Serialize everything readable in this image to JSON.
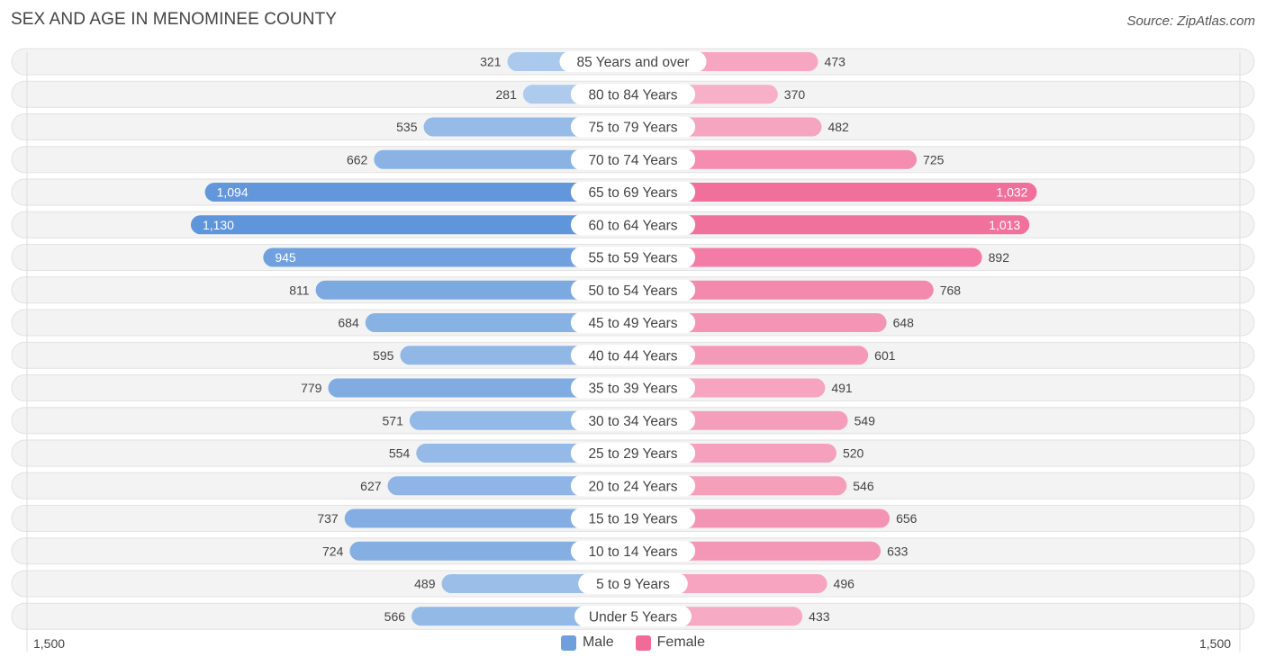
{
  "chart_data": {
    "type": "bar",
    "orientation": "horizontal-butterfly",
    "title": "SEX AND AGE IN MENOMINEE COUNTY",
    "source": "Source: ZipAtlas.com",
    "categories": [
      "85 Years and over",
      "80 to 84 Years",
      "75 to 79 Years",
      "70 to 74 Years",
      "65 to 69 Years",
      "60 to 64 Years",
      "55 to 59 Years",
      "50 to 54 Years",
      "45 to 49 Years",
      "40 to 44 Years",
      "35 to 39 Years",
      "30 to 34 Years",
      "25 to 29 Years",
      "20 to 24 Years",
      "15 to 19 Years",
      "10 to 14 Years",
      "5 to 9 Years",
      "Under 5 Years"
    ],
    "series": [
      {
        "name": "Male",
        "color": "#6fa0dc",
        "values": [
          321,
          281,
          535,
          662,
          1094,
          1130,
          945,
          811,
          684,
          595,
          779,
          571,
          554,
          627,
          737,
          724,
          489,
          566
        ],
        "labels": [
          "321",
          "281",
          "535",
          "662",
          "1,094",
          "1,130",
          "945",
          "811",
          "684",
          "595",
          "779",
          "571",
          "554",
          "627",
          "737",
          "724",
          "489",
          "566"
        ]
      },
      {
        "name": "Female",
        "color": "#f06b98",
        "values": [
          473,
          370,
          482,
          725,
          1032,
          1013,
          892,
          768,
          648,
          601,
          491,
          549,
          520,
          546,
          656,
          633,
          496,
          433
        ],
        "labels": [
          "473",
          "370",
          "482",
          "725",
          "1,032",
          "1,013",
          "892",
          "768",
          "648",
          "601",
          "491",
          "549",
          "520",
          "546",
          "656",
          "633",
          "496",
          "433"
        ]
      }
    ],
    "xlim": [
      -1500,
      1500
    ],
    "axis_min_label": "1,500",
    "axis_max_label": "1,500",
    "legend_position": "bottom-center"
  }
}
